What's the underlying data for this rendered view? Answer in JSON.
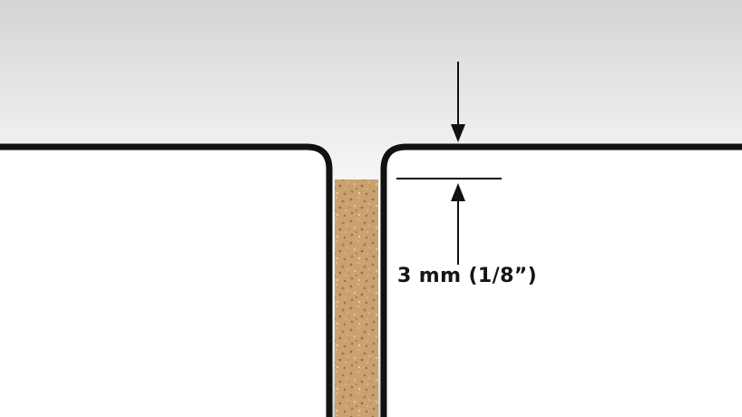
{
  "dimension": {
    "label": "3 mm (1/8”)"
  },
  "colors": {
    "background_top": "#d4d4d4",
    "background_mid": "#ffffff",
    "panel_fill": "#ffffff",
    "outline": "#111111",
    "joint_filler": "#c9a270",
    "joint_filler_speck_dark": "#9c7448",
    "joint_filler_speck_light": "#e3c497"
  }
}
